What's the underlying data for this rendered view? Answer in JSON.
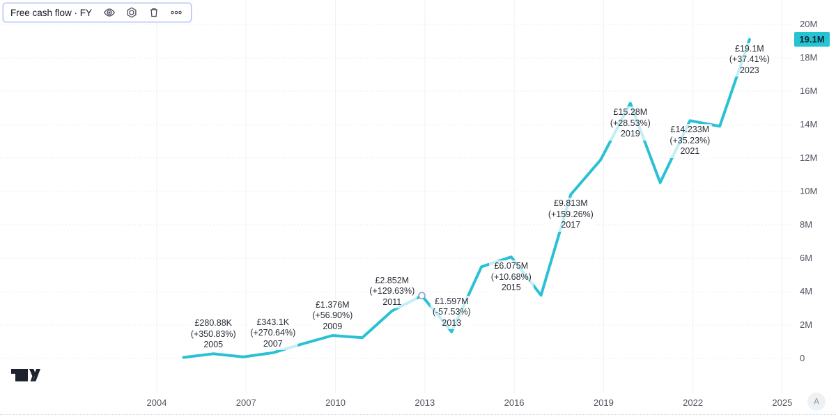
{
  "legend": {
    "title": "Free cash flow · FY",
    "icons": [
      {
        "name": "visibility-icon"
      },
      {
        "name": "settings-icon"
      },
      {
        "name": "delete-icon"
      },
      {
        "name": "more-options-icon"
      }
    ]
  },
  "attribution": {
    "corner_button_label": "A"
  },
  "chart_data": {
    "type": "line",
    "title": "Free cash flow · FY",
    "currency": "£",
    "line_color": "#2ac1d4",
    "grid": true,
    "legend_position": "top-left",
    "x_axis": {
      "ticks": [
        2004,
        2007,
        2010,
        2013,
        2016,
        2019,
        2022,
        2025
      ],
      "range_years": [
        2004,
        2025
      ]
    },
    "y_axis": {
      "position": "right",
      "range_millions": [
        0,
        20
      ],
      "ticks": [
        {
          "label": "20M",
          "value": 20
        },
        {
          "label": "18M",
          "value": 18
        },
        {
          "label": "16M",
          "value": 16
        },
        {
          "label": "14M",
          "value": 14
        },
        {
          "label": "12M",
          "value": 12
        },
        {
          "label": "10M",
          "value": 10
        },
        {
          "label": "8M",
          "value": 8
        },
        {
          "label": "6M",
          "value": 6
        },
        {
          "label": "4M",
          "value": 4
        },
        {
          "label": "2M",
          "value": 2
        },
        {
          "label": "0",
          "value": 0
        }
      ]
    },
    "last_value": {
      "label": "19.1M",
      "value": 19.1,
      "badge_color": "#25c4d2"
    },
    "series": [
      {
        "name": "Free cash flow",
        "color": "#2ac1d4",
        "points": [
          {
            "year": 2004,
            "value": 0.062
          },
          {
            "year": 2005,
            "value": 0.281
          },
          {
            "year": 2006,
            "value": 0.093
          },
          {
            "year": 2007,
            "value": 0.343
          },
          {
            "year": 2008,
            "value": 0.877
          },
          {
            "year": 2009,
            "value": 1.376
          },
          {
            "year": 2010,
            "value": 1.242
          },
          {
            "year": 2011,
            "value": 2.852
          },
          {
            "year": 2012,
            "value": 3.76
          },
          {
            "year": 2013,
            "value": 1.597
          },
          {
            "year": 2014,
            "value": 5.489
          },
          {
            "year": 2015,
            "value": 6.075
          },
          {
            "year": 2016,
            "value": 3.785
          },
          {
            "year": 2017,
            "value": 9.813
          },
          {
            "year": 2018,
            "value": 11.888
          },
          {
            "year": 2019,
            "value": 15.28
          },
          {
            "year": 2020,
            "value": 10.525
          },
          {
            "year": 2021,
            "value": 14.233
          },
          {
            "year": 2022,
            "value": 13.9
          },
          {
            "year": 2023,
            "value": 19.1
          }
        ]
      }
    ],
    "selected_point": {
      "year": 2012,
      "value": 3.76
    },
    "annotations": [
      {
        "year": 2005,
        "value": 0.281,
        "value_label": "£280.88K",
        "change_label": "(+350.83%)",
        "year_label": "2005",
        "placement": "above"
      },
      {
        "year": 2007,
        "value": 0.343,
        "value_label": "£343.1K",
        "change_label": "(+270.64%)",
        "year_label": "2007",
        "placement": "above"
      },
      {
        "year": 2009,
        "value": 1.376,
        "value_label": "£1.376M",
        "change_label": "(+56.90%)",
        "year_label": "2009",
        "placement": "above"
      },
      {
        "year": 2011,
        "value": 2.852,
        "value_label": "£2.852M",
        "change_label": "(+129.63%)",
        "year_label": "2011",
        "placement": "above"
      },
      {
        "year": 2013,
        "value": 1.597,
        "value_label": "£1.597M",
        "change_label": "(-57.53%)",
        "year_label": "2013",
        "placement": "above"
      },
      {
        "year": 2015,
        "value": 6.075,
        "value_label": "£6.075M",
        "change_label": "(+10.68%)",
        "year_label": "2015",
        "placement": "below"
      },
      {
        "year": 2017,
        "value": 9.813,
        "value_label": "£9.813M",
        "change_label": "(+159.26%)",
        "year_label": "2017",
        "placement": "below"
      },
      {
        "year": 2019,
        "value": 15.28,
        "value_label": "£15.28M",
        "change_label": "(+28.53%)",
        "year_label": "2019",
        "placement": "below"
      },
      {
        "year": 2021,
        "value": 14.233,
        "value_label": "£14.233M",
        "change_label": "(+35.23%)",
        "year_label": "2021",
        "placement": "below"
      },
      {
        "year": 2023,
        "value": 19.1,
        "value_label": "£19.1M",
        "change_label": "(+37.41%)",
        "year_label": "2023",
        "placement": "below"
      }
    ]
  }
}
